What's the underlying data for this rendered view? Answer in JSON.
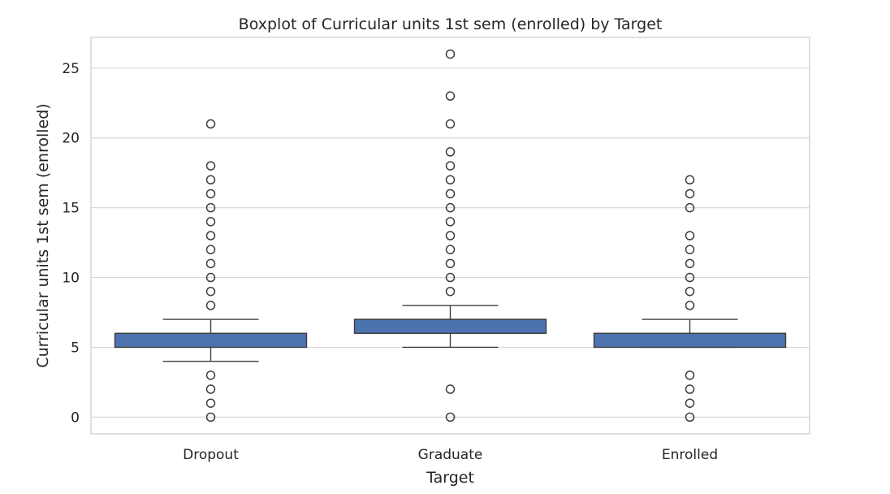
{
  "chart_data": {
    "type": "box",
    "title": "Boxplot of Curricular units 1st sem (enrolled) by Target",
    "xlabel": "Target",
    "ylabel": "Curricular units 1st sem (enrolled)",
    "ylim": [
      -1.2,
      27.2
    ],
    "yticks": [
      0,
      5,
      10,
      15,
      20,
      25
    ],
    "grid": true,
    "colors": {
      "box": "#4c72b0",
      "edge": "#3d3d3d",
      "grid": "#d9d9d9",
      "frame": "#cccccc"
    },
    "categories": [
      "Dropout",
      "Graduate",
      "Enrolled"
    ],
    "boxes": [
      {
        "category": "Dropout",
        "whisker_low": 4,
        "q1": 5,
        "median": 6,
        "q3": 6,
        "whisker_high": 7,
        "outliers": [
          0,
          1,
          2,
          3,
          8,
          9,
          10,
          11,
          12,
          13,
          14,
          15,
          16,
          17,
          18,
          21
        ]
      },
      {
        "category": "Graduate",
        "whisker_low": 5,
        "q1": 6,
        "median": 7,
        "q3": 7,
        "whisker_high": 8,
        "outliers": [
          0,
          2,
          9,
          10,
          11,
          12,
          13,
          14,
          15,
          16,
          17,
          18,
          19,
          21,
          23,
          26
        ]
      },
      {
        "category": "Enrolled",
        "whisker_low": 5,
        "q1": 5,
        "median": 6,
        "q3": 6,
        "whisker_high": 7,
        "outliers": [
          0,
          1,
          2,
          3,
          8,
          9,
          10,
          11,
          12,
          13,
          15,
          16,
          17
        ]
      }
    ]
  }
}
